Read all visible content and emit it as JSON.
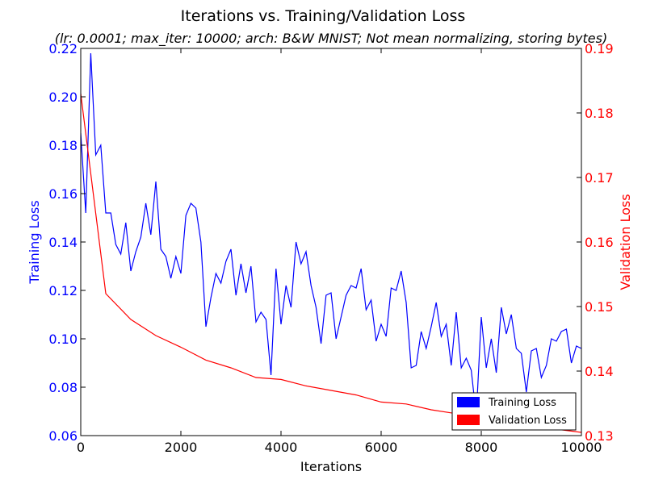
{
  "colors": {
    "training": "#0000ff",
    "validation": "#ff0000",
    "axes": "#000000",
    "background": "#ffffff"
  },
  "chart_data": {
    "type": "line",
    "title": "Iterations vs. Training/Validation Loss",
    "subtitle": "(lr: 0.0001; max_iter: 10000; arch: B&W MNIST; Not mean normalizing, storing bytes)",
    "xlabel": "Iterations",
    "ylabel_left": "Training Loss",
    "ylabel_right": "Validation Loss",
    "xlim": [
      0,
      10000
    ],
    "ylim_left": [
      0.06,
      0.22
    ],
    "ylim_right": [
      0.13,
      0.19
    ],
    "x_ticks": [
      "0",
      "2000",
      "4000",
      "6000",
      "8000",
      "10000"
    ],
    "y_ticks_left": [
      "0.06",
      "0.08",
      "0.10",
      "0.12",
      "0.14",
      "0.16",
      "0.18",
      "0.20",
      "0.22"
    ],
    "y_ticks_right": [
      "0.13",
      "0.14",
      "0.15",
      "0.16",
      "0.17",
      "0.18",
      "0.19"
    ],
    "grid": false,
    "legend_position": "bottom-right",
    "series": [
      {
        "name": "Training Loss",
        "axis": "left",
        "x": [
          0,
          100,
          200,
          300,
          400,
          500,
          600,
          700,
          800,
          900,
          1000,
          1100,
          1200,
          1300,
          1400,
          1500,
          1600,
          1700,
          1800,
          1900,
          2000,
          2100,
          2200,
          2300,
          2400,
          2500,
          2600,
          2700,
          2800,
          2900,
          3000,
          3100,
          3200,
          3300,
          3400,
          3500,
          3600,
          3700,
          3800,
          3900,
          4000,
          4100,
          4200,
          4300,
          4400,
          4500,
          4600,
          4700,
          4800,
          4900,
          5000,
          5100,
          5200,
          5300,
          5400,
          5500,
          5600,
          5700,
          5800,
          5900,
          6000,
          6100,
          6200,
          6300,
          6400,
          6500,
          6600,
          6700,
          6800,
          6900,
          7000,
          7100,
          7200,
          7300,
          7400,
          7500,
          7600,
          7700,
          7800,
          7900,
          8000,
          8100,
          8200,
          8300,
          8400,
          8500,
          8600,
          8700,
          8800,
          8900,
          9000,
          9100,
          9200,
          9300,
          9400,
          9500,
          9600,
          9700,
          9800,
          9900,
          10000
        ],
        "values": [
          0.185,
          0.152,
          0.218,
          0.176,
          0.18,
          0.152,
          0.152,
          0.139,
          0.135,
          0.148,
          0.128,
          0.136,
          0.142,
          0.156,
          0.143,
          0.165,
          0.137,
          0.134,
          0.125,
          0.134,
          0.127,
          0.151,
          0.156,
          0.154,
          0.14,
          0.105,
          0.117,
          0.127,
          0.123,
          0.132,
          0.137,
          0.118,
          0.131,
          0.119,
          0.13,
          0.107,
          0.111,
          0.108,
          0.085,
          0.129,
          0.106,
          0.122,
          0.113,
          0.14,
          0.131,
          0.136,
          0.122,
          0.113,
          0.098,
          0.118,
          0.119,
          0.1,
          0.109,
          0.118,
          0.122,
          0.121,
          0.129,
          0.112,
          0.116,
          0.099,
          0.106,
          0.101,
          0.121,
          0.12,
          0.128,
          0.115,
          0.088,
          0.089,
          0.103,
          0.096,
          0.105,
          0.115,
          0.101,
          0.106,
          0.089,
          0.111,
          0.088,
          0.092,
          0.087,
          0.068,
          0.109,
          0.088,
          0.1,
          0.086,
          0.113,
          0.102,
          0.11,
          0.096,
          0.094,
          0.078,
          0.095,
          0.096,
          0.084,
          0.089,
          0.1,
          0.099,
          0.103,
          0.104,
          0.09,
          0.097,
          0.096
        ]
      },
      {
        "name": "Validation Loss",
        "axis": "right",
        "x": [
          0,
          500,
          1000,
          1500,
          2000,
          2500,
          3000,
          3500,
          4000,
          4500,
          5000,
          5500,
          6000,
          6500,
          7000,
          7500,
          8000,
          8500,
          9000,
          9500,
          10000
        ],
        "values": [
          0.183,
          0.152,
          0.148,
          0.1455,
          0.1437,
          0.1417,
          0.1405,
          0.139,
          0.1387,
          0.1377,
          0.137,
          0.1363,
          0.1352,
          0.1349,
          0.134,
          0.1334,
          0.133,
          0.1325,
          0.1318,
          0.131,
          0.1305
        ]
      }
    ]
  }
}
